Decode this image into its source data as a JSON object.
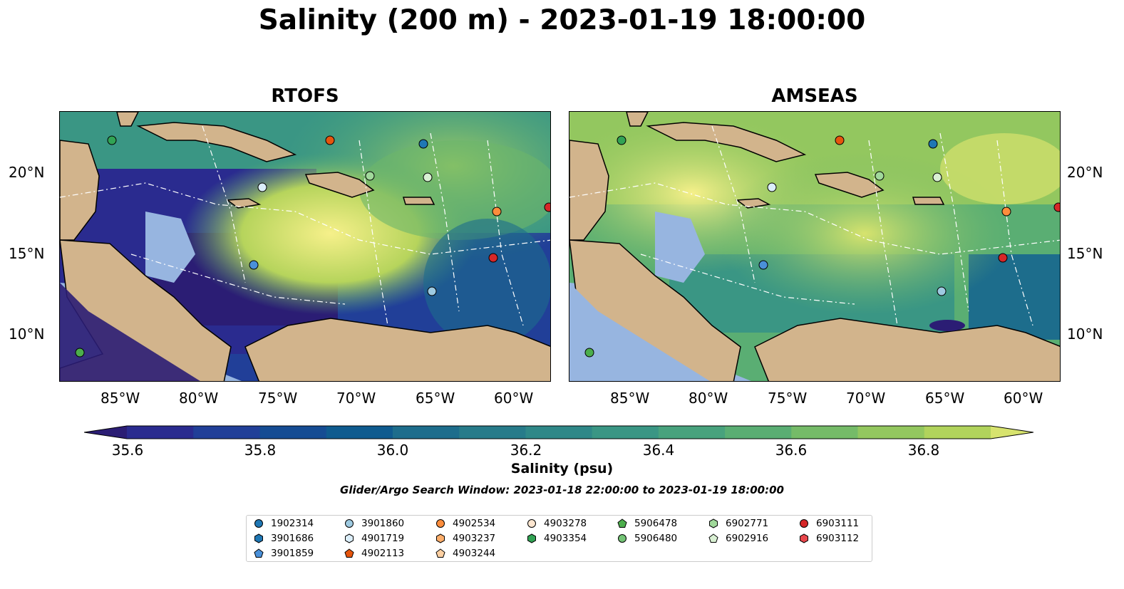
{
  "title": "Salinity (200 m) - 2023-01-19 18:00:00",
  "panels": [
    {
      "title": "RTOFS"
    },
    {
      "title": "AMSEAS"
    }
  ],
  "axes": {
    "x_ticks": [
      "85°W",
      "80°W",
      "75°W",
      "70°W",
      "65°W",
      "60°W"
    ],
    "y_ticks": [
      "20°N",
      "15°N",
      "10°N"
    ]
  },
  "colorbar": {
    "label": "Salinity (psu)",
    "ticks": [
      "35.6",
      "35.8",
      "36.0",
      "36.2",
      "36.4",
      "36.6",
      "36.8"
    ],
    "colors": [
      "#2b1d74",
      "#2a2b8f",
      "#213f98",
      "#154c93",
      "#0f5b8f",
      "#1d6d8c",
      "#277b8a",
      "#2f8888",
      "#3a9684",
      "#48a27d",
      "#5aae73",
      "#75bb68",
      "#93c75f",
      "#b1d35c",
      "#d7e36e"
    ]
  },
  "search_window": "Glider/Argo Search Window: 2023-01-18 22:00:00 to 2023-01-19 18:00:00",
  "legend": [
    {
      "label": "1902314",
      "color": "#1f77b4",
      "marker": "circle"
    },
    {
      "label": "3901686",
      "color": "#1f77b4",
      "marker": "hexagon"
    },
    {
      "label": "3901859",
      "color": "#4a90d9",
      "marker": "pentagon"
    },
    {
      "label": "3901860",
      "color": "#9ecae1",
      "marker": "circle"
    },
    {
      "label": "4901719",
      "color": "#dbeefa",
      "marker": "hexagon"
    },
    {
      "label": "4902113",
      "color": "#e6550d",
      "marker": "pentagon"
    },
    {
      "label": "4902534",
      "color": "#fd8d3c",
      "marker": "circle"
    },
    {
      "label": "4903237",
      "color": "#fdae6b",
      "marker": "hexagon"
    },
    {
      "label": "4903244",
      "color": "#fdd0a2",
      "marker": "pentagon"
    },
    {
      "label": "4903278",
      "color": "#fde6d0",
      "marker": "circle"
    },
    {
      "label": "4903354",
      "color": "#31a354",
      "marker": "hexagon"
    },
    {
      "label": "5906478",
      "color": "#4cae4c",
      "marker": "pentagon"
    },
    {
      "label": "5906480",
      "color": "#74c476",
      "marker": "circle"
    },
    {
      "label": "6902771",
      "color": "#a1d99b",
      "marker": "hexagon"
    },
    {
      "label": "6902916",
      "color": "#d9f0d3",
      "marker": "pentagon"
    },
    {
      "label": "6903111",
      "color": "#d62728",
      "marker": "circle"
    },
    {
      "label": "6903112",
      "color": "#e8474c",
      "marker": "hexagon"
    }
  ],
  "colors": {
    "land": "#d2b48c",
    "shallow": "#97b5e0",
    "dark": "#2b1d74"
  }
}
